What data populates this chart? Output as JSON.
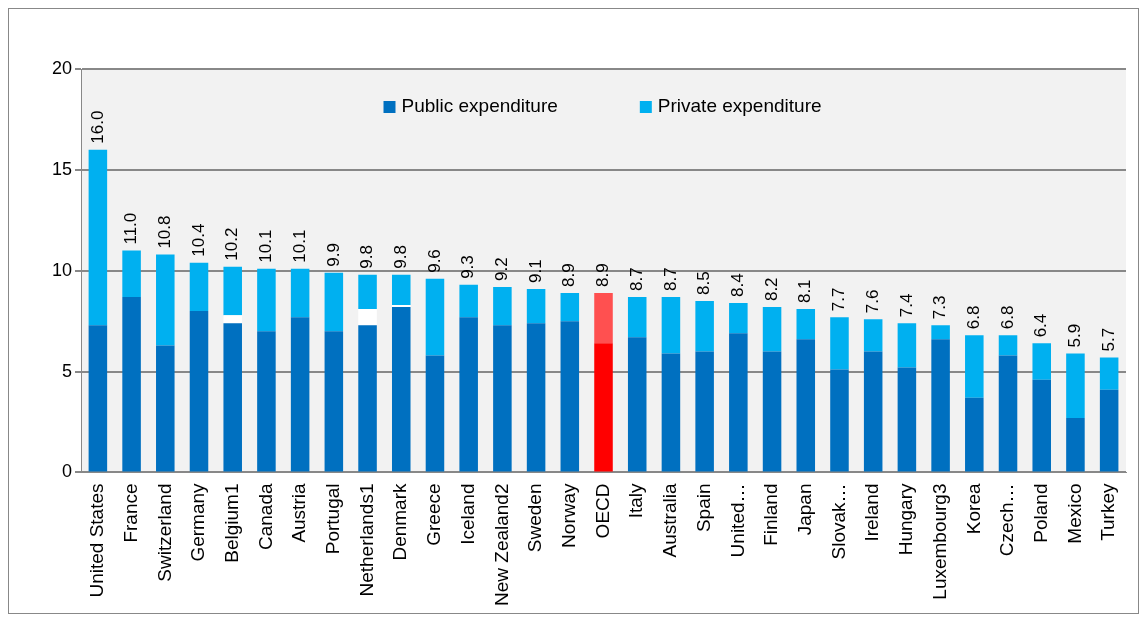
{
  "chart_data": {
    "type": "bar",
    "stacked": true,
    "categories": [
      "United States",
      "France",
      "Switzerland",
      "Germany",
      "Belgium1",
      "Canada",
      "Austria",
      "Portugal",
      "Netherlands1",
      "Denmark",
      "Greece",
      "Iceland",
      "New Zealand2",
      "Sweden",
      "Norway",
      "OECD",
      "Italy",
      "Australia",
      "Spain",
      "United…",
      "Finland",
      "Japan",
      "Slovak…",
      "Ireland",
      "Hungary",
      "Luxembourg3",
      "Korea",
      "Czech…",
      "Poland",
      "Mexico",
      "Turkey"
    ],
    "series": [
      {
        "name": "Public expenditure",
        "color": "#0070c0",
        "colors": [
          "#0070c0",
          "#0070c0",
          "#0070c0",
          "#0070c0",
          "#0070c0",
          "#0070c0",
          "#0070c0",
          "#0070c0",
          "#0070c0",
          "#0070c0",
          "#0070c0",
          "#0070c0",
          "#0070c0",
          "#0070c0",
          "#0070c0",
          "#ff0000",
          "#0070c0",
          "#0070c0",
          "#0070c0",
          "#0070c0",
          "#0070c0",
          "#0070c0",
          "#0070c0",
          "#0070c0",
          "#0070c0",
          "#0070c0",
          "#0070c0",
          "#0070c0",
          "#0070c0",
          "#0070c0",
          "#0070c0"
        ],
        "values": [
          7.3,
          8.7,
          6.3,
          8.0,
          7.4,
          7.0,
          7.7,
          7.0,
          7.3,
          8.2,
          5.8,
          7.7,
          7.3,
          7.4,
          7.5,
          6.4,
          6.7,
          5.9,
          6.0,
          6.9,
          6.0,
          6.6,
          5.1,
          6.0,
          5.2,
          6.6,
          3.7,
          5.8,
          4.6,
          2.7,
          4.1
        ]
      },
      {
        "color": "#ffffff",
        "values": [
          0,
          0,
          0,
          0,
          0.4,
          0,
          0,
          0,
          0.8,
          0.1,
          0,
          0,
          0,
          0,
          0,
          0,
          0,
          0,
          0,
          0,
          0,
          0,
          0,
          0,
          0,
          0,
          0,
          0,
          0,
          0,
          0
        ]
      },
      {
        "name": "Private expenditure",
        "color": "#00b0f0",
        "colors": [
          "#00b0f0",
          "#00b0f0",
          "#00b0f0",
          "#00b0f0",
          "#00b0f0",
          "#00b0f0",
          "#00b0f0",
          "#00b0f0",
          "#00b0f0",
          "#00b0f0",
          "#00b0f0",
          "#00b0f0",
          "#00b0f0",
          "#00b0f0",
          "#00b0f0",
          "#ff5050",
          "#00b0f0",
          "#00b0f0",
          "#00b0f0",
          "#00b0f0",
          "#00b0f0",
          "#00b0f0",
          "#00b0f0",
          "#00b0f0",
          "#00b0f0",
          "#00b0f0",
          "#00b0f0",
          "#00b0f0",
          "#00b0f0",
          "#00b0f0",
          "#00b0f0"
        ],
        "values": [
          8.7,
          2.3,
          4.5,
          2.4,
          2.4,
          3.1,
          2.4,
          2.9,
          1.7,
          1.5,
          3.8,
          1.6,
          1.9,
          1.7,
          1.4,
          2.5,
          2.0,
          2.8,
          2.5,
          1.5,
          2.2,
          1.5,
          2.6,
          1.6,
          2.2,
          0.7,
          3.1,
          1.0,
          1.8,
          3.2,
          1.6
        ]
      }
    ],
    "totals": [
      "16.0",
      "11.0",
      "10.8",
      "10.4",
      "10.2",
      "10.1",
      "10.1",
      "9.9",
      "9.8",
      "9.8",
      "9.6",
      "9.3",
      "9.2",
      "9.1",
      "8.9",
      "8.9",
      "8.7",
      "8.7",
      "8.5",
      "8.4",
      "8.2",
      "8.1",
      "7.7",
      "7.6",
      "7.4",
      "7.3",
      "6.8",
      "6.8",
      "6.4",
      "5.9",
      "5.7"
    ],
    "ylim": [
      0,
      20
    ],
    "yticks": [
      0,
      5,
      10,
      15,
      20
    ],
    "grid": "y",
    "legend": "top"
  }
}
